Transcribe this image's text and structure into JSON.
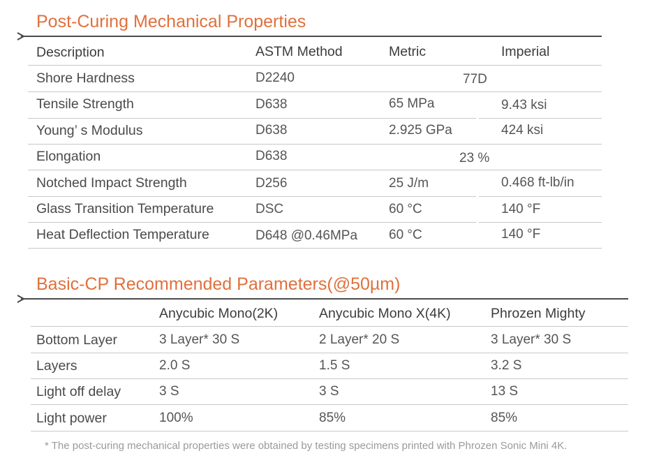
{
  "section1": {
    "title": "Post-Curing Mechanical Properties",
    "headers": [
      "Description",
      "ASTM Method",
      "Metric",
      "Imperial"
    ],
    "rows": [
      {
        "desc": "Shore Hardness",
        "method": "D2240",
        "merged": "77D"
      },
      {
        "desc": "Tensile Strength",
        "method": "D638",
        "metric": "65 MPa",
        "imperial": "9.43 ksi"
      },
      {
        "desc": "Young’ s Modulus",
        "method": "D638",
        "metric": "2.925 GPa",
        "imperial": "424 ksi"
      },
      {
        "desc": "Elongation",
        "method": "D638",
        "merged": "23 %"
      },
      {
        "desc": "Notched Impact Strength",
        "method": "D256",
        "metric": "25 J/m",
        "imperial": "0.468 ft-lb/in"
      },
      {
        "desc": "Glass Transition Temperature",
        "method": "DSC",
        "metric": "60 °C",
        "imperial": "140 °F"
      },
      {
        "desc": "Heat Deflection Temperature",
        "method": "D648 @0.46MPa",
        "metric": "60 °C",
        "imperial": "140 °F"
      }
    ]
  },
  "section2": {
    "title": "Basic-CP Recommended Parameters(@50µm)",
    "headers": [
      "",
      "Anycubic Mono(2K)",
      "Anycubic Mono X(4K)",
      "Phrozen Mighty"
    ],
    "rows": [
      {
        "label": "Bottom Layer",
        "c1": "3 Layer* 30 S",
        "c2": "2 Layer* 20 S",
        "c3": "3 Layer* 30 S"
      },
      {
        "label": "Layers",
        "c1": "2.0 S",
        "c2": "1.5 S",
        "c3": "3.2 S"
      },
      {
        "label": "Light off delay",
        "c1": "3 S",
        "c2": "3 S",
        "c3": "13 S"
      },
      {
        "label": "Light power",
        "c1": "100%",
        "c2": "85%",
        "c3": "85%"
      }
    ]
  },
  "footnote": "* The post-curing mechanical properties were obtained by testing specimens printed with Phrozen Sonic Mini 4K.",
  "colors": {
    "accent": "#e0703c",
    "rule": "#4a4a4a",
    "grid": "#c8c8c8"
  }
}
